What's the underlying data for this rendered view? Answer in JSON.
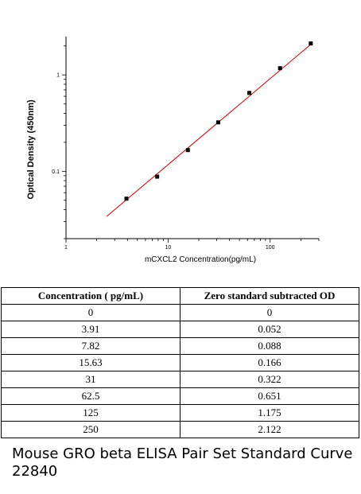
{
  "chart_data": {
    "type": "scatter",
    "xlabel": "mCXCL2  Concentration(pg/mL)",
    "ylabel": "Optical Density (450nm)",
    "xscale": "log",
    "yscale": "log",
    "xlim": [
      1,
      300
    ],
    "ylim": [
      0.02,
      2.5
    ],
    "x_ticks": [
      {
        "value": 1,
        "label": "1"
      },
      {
        "value": 10,
        "label": "10"
      },
      {
        "value": 100,
        "label": "100"
      }
    ],
    "y_ticks": [
      {
        "value": 0.1,
        "label": "0.1"
      },
      {
        "value": 1,
        "label": "1"
      }
    ],
    "series": [
      {
        "marker": "square",
        "color": "#000000",
        "x": [
          3.91,
          7.82,
          15.63,
          31,
          62.5,
          125,
          250
        ],
        "y": [
          0.052,
          0.088,
          0.166,
          0.322,
          0.651,
          1.175,
          2.122
        ]
      }
    ],
    "fit_line": {
      "color": "#cc0000",
      "x": [
        2.5,
        260
      ],
      "y": [
        0.034,
        2.15
      ]
    },
    "grid": false
  },
  "table": {
    "headers": [
      "Concentration ( pg/mL)",
      "Zero standard subtracted OD"
    ],
    "rows": [
      [
        "0",
        "0"
      ],
      [
        "3.91",
        "0.052"
      ],
      [
        "7.82",
        "0.088"
      ],
      [
        "15.63",
        "0.166"
      ],
      [
        "31",
        "0.322"
      ],
      [
        "62.5",
        "0.651"
      ],
      [
        "125",
        "1.175"
      ],
      [
        "250",
        "2.122"
      ]
    ]
  },
  "caption": "Mouse GRO beta ELISA Pair Set Standard Curve 22840"
}
